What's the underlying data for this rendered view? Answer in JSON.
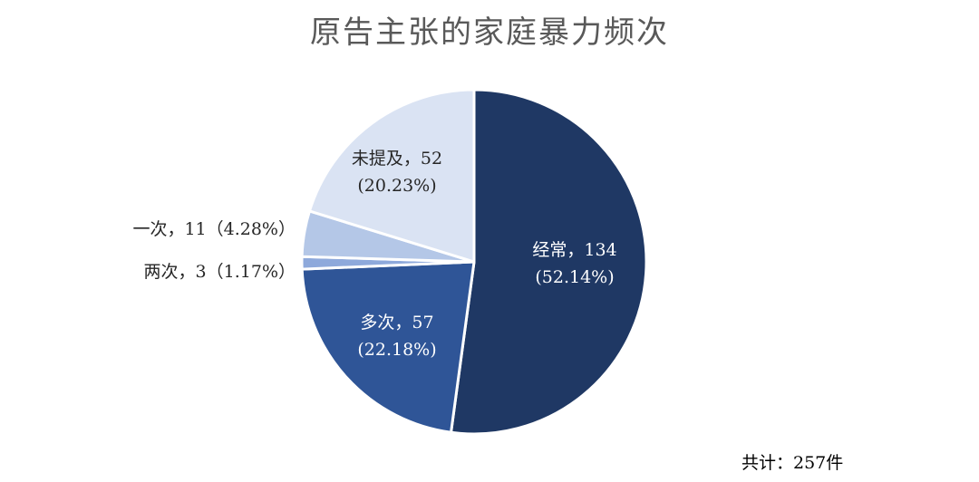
{
  "chart_data": {
    "type": "pie",
    "title": "原告主张的家庭暴力频次",
    "categories": [
      "经常",
      "多次",
      "两次",
      "一次",
      "未提及"
    ],
    "values": [
      134,
      57,
      3,
      11,
      52
    ],
    "percent_labels": [
      "52.14%",
      "22.18%",
      "1.17%",
      "4.28%",
      "20.23%"
    ],
    "data_labels": [
      [
        "经常，134",
        "(52.14%)"
      ],
      [
        "多次，57",
        "(22.18%)"
      ],
      [
        "两次，3（1.17%）"
      ],
      [
        "一次，11（4.28%）"
      ],
      [
        "未提及，52",
        "(20.23%)"
      ]
    ],
    "colors": [
      "#1f3864",
      "#2f5597",
      "#8ea9db",
      "#b4c7e7",
      "#dae3f3"
    ],
    "label_colors": [
      "#ffffff",
      "#ffffff",
      "#262626",
      "#262626",
      "#262626"
    ],
    "start": "12 o'clock",
    "direction": "clockwise",
    "legend": "none"
  },
  "total_label": "共计：257件"
}
